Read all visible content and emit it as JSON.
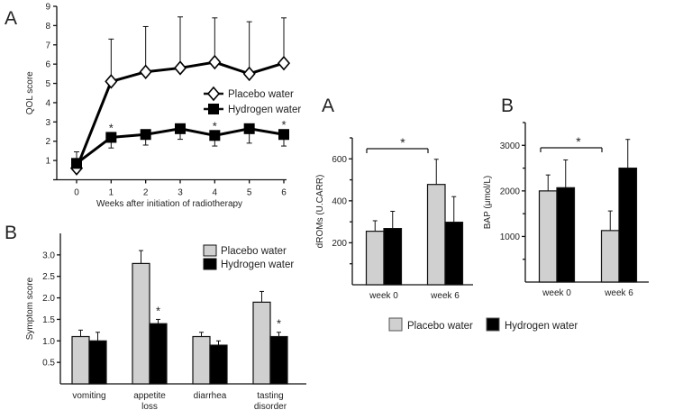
{
  "chart_data": [
    {
      "type": "line",
      "panel_label": "A",
      "xlabel": "Weeks after initiation of radiotherapy",
      "ylabel": "QOL score",
      "x": [
        0,
        1,
        2,
        3,
        4,
        5,
        6
      ],
      "xticks": [
        "0",
        "1",
        "2",
        "3",
        "4",
        "5",
        "6"
      ],
      "yticks": [
        "1",
        "2",
        "3",
        "4",
        "5",
        "6",
        "7",
        "8",
        "9"
      ],
      "ylim": [
        0,
        9
      ],
      "series": [
        {
          "name": "Placebo water",
          "marker": "open-diamond",
          "values": [
            0.6,
            5.1,
            5.6,
            5.8,
            6.1,
            5.5,
            6.05
          ],
          "err_upper": [
            1.45,
            7.3,
            7.95,
            8.45,
            8.4,
            8.2,
            8.4
          ]
        },
        {
          "name": "Hydrogen water",
          "marker": "filled-square",
          "values": [
            0.85,
            2.2,
            2.35,
            2.65,
            2.3,
            2.65,
            2.35
          ],
          "err_lower": [
            0.5,
            1.65,
            1.8,
            2.1,
            1.75,
            1.9,
            1.75
          ]
        }
      ],
      "significance_marker": "*",
      "significant_x": [
        1,
        4,
        6
      ],
      "legend": "right"
    },
    {
      "type": "bar",
      "panel_label": "B",
      "ylabel": "Symptom score",
      "categories": [
        [
          "vomiting"
        ],
        [
          "appetite",
          "loss"
        ],
        [
          "diarrhea"
        ],
        [
          "tasting",
          "disorder"
        ]
      ],
      "yticks": [
        "0.5",
        "1.0",
        "1.5",
        "2.0",
        "2.5",
        "3.0"
      ],
      "ylim": [
        0,
        3.5
      ],
      "series": [
        {
          "name": "Placebo water",
          "color": "#d0d0d0",
          "values": [
            1.1,
            2.8,
            1.1,
            1.9
          ],
          "err_upper": [
            1.25,
            3.1,
            1.2,
            2.15
          ]
        },
        {
          "name": "Hydrogen water",
          "color": "#000000",
          "values": [
            1.0,
            1.4,
            0.9,
            1.1
          ],
          "err_upper": [
            1.2,
            1.5,
            1.0,
            1.2
          ]
        }
      ],
      "significance_marker": "*",
      "significant_categories": [
        1,
        3
      ],
      "legend": "top-right"
    },
    {
      "type": "bar",
      "panel_label": "A",
      "ylabel": "dROMs (U.CARR)",
      "categories": [
        "week 0",
        "week 6"
      ],
      "yticks": [
        "200",
        "400",
        "600"
      ],
      "ylim": [
        0,
        700
      ],
      "series": [
        {
          "name": "Placebo water",
          "color": "#d0d0d0",
          "values": [
            255,
            478
          ],
          "err_upper": [
            305,
            598
          ]
        },
        {
          "name": "Hydrogen water",
          "color": "#000000",
          "values": [
            268,
            298
          ],
          "err_upper": [
            350,
            420
          ]
        }
      ],
      "significance_marker": "*",
      "bracket": "placebo week 0 vs week 6"
    },
    {
      "type": "bar",
      "panel_label": "B",
      "ylabel": "BAP (μmol/L)",
      "categories": [
        "week 0",
        "week 6"
      ],
      "yticks": [
        "1000",
        "2000",
        "3000"
      ],
      "ylim": [
        0,
        3500
      ],
      "series": [
        {
          "name": "Placebo water",
          "color": "#d0d0d0",
          "values": [
            2000,
            1130
          ],
          "err_upper": [
            2350,
            1560
          ]
        },
        {
          "name": "Hydrogen water",
          "color": "#000000",
          "values": [
            2070,
            2500
          ],
          "err_upper": [
            2680,
            3130
          ]
        }
      ],
      "significance_marker": "*",
      "bracket": "placebo week 0 vs week 6"
    }
  ],
  "shared_legend": [
    "Placebo water",
    "Hydrogen water"
  ]
}
